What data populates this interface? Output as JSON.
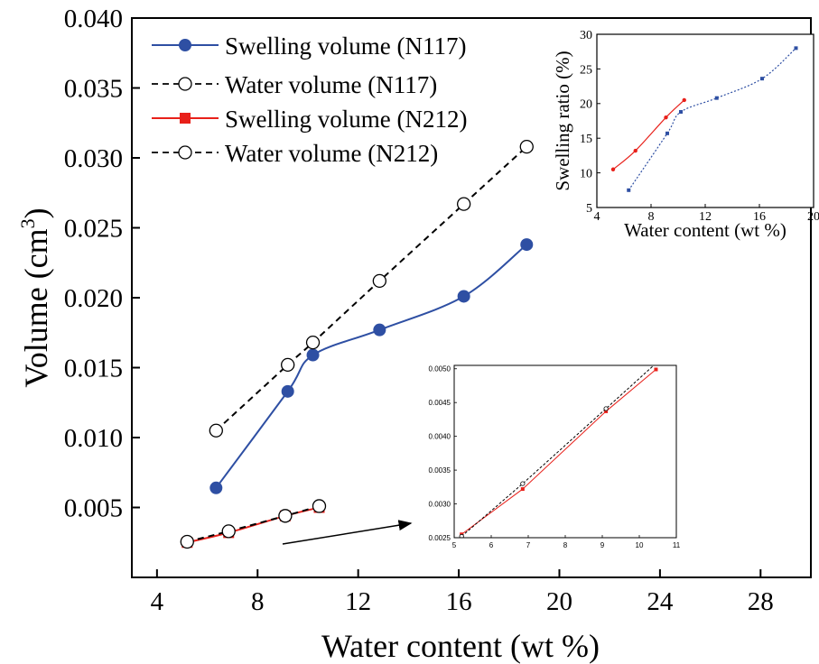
{
  "chart_data": [
    {
      "id": "main",
      "type": "line",
      "xlabel": "Water content (wt %)",
      "ylabel": "Volume (cm",
      "ylabel_sup": "3",
      "ylabel_close": ")",
      "xlim": [
        3,
        30
      ],
      "ylim": [
        0,
        0.04
      ],
      "xticks": [
        4,
        8,
        12,
        16,
        20,
        24,
        28
      ],
      "xtick_labels": [
        "4",
        "8",
        "12",
        "16",
        "20",
        "24",
        "28"
      ],
      "yticks": [
        0.005,
        0.01,
        0.015,
        0.02,
        0.025,
        0.03,
        0.035,
        0.04
      ],
      "ytick_labels": [
        "0.005",
        "0.010",
        "0.015",
        "0.020",
        "0.025",
        "0.030",
        "0.035",
        "0.040"
      ],
      "legend_position": "top-left",
      "series": [
        {
          "name": "Swelling volume (N117)",
          "color": "#2e4fa3",
          "style": "solid",
          "marker": "filled-circle",
          "x": [
            6.35,
            9.2,
            10.2,
            12.85,
            16.2,
            18.7
          ],
          "y": [
            0.0064,
            0.0133,
            0.0159,
            0.0177,
            0.0201,
            0.0238
          ]
        },
        {
          "name": "Water volume (N117)",
          "color": "#000000",
          "style": "dashed",
          "marker": "open-circle",
          "x": [
            6.35,
            9.2,
            10.2,
            12.85,
            16.2,
            18.7
          ],
          "y": [
            0.0105,
            0.0152,
            0.0168,
            0.0212,
            0.0267,
            0.0308
          ]
        },
        {
          "name": "Swelling volume (N212)",
          "color": "#e8201a",
          "style": "solid",
          "marker": "filled-square",
          "x": [
            5.2,
            6.85,
            9.1,
            10.45
          ],
          "y": [
            0.0025,
            0.0032,
            0.0044,
            0.005
          ]
        },
        {
          "name": "Water volume (N212)",
          "color": "#000000",
          "style": "dashed",
          "marker": "open-circle",
          "x": [
            5.2,
            6.85,
            9.1,
            10.45
          ],
          "y": [
            0.00255,
            0.0033,
            0.0044,
            0.0051
          ]
        }
      ]
    },
    {
      "id": "inset-swelling-ratio",
      "type": "line",
      "xlabel": "Water content (wt %)",
      "ylabel": "Swelling ratio (%)",
      "xlim": [
        4,
        20
      ],
      "ylim": [
        5,
        30
      ],
      "xticks": [
        4,
        8,
        12,
        16,
        20
      ],
      "xtick_labels": [
        "4",
        "8",
        "12",
        "16",
        "20"
      ],
      "yticks": [
        5,
        10,
        15,
        20,
        25,
        30
      ],
      "ytick_labels": [
        "5",
        "10",
        "15",
        "20",
        "25",
        "30"
      ],
      "series": [
        {
          "color": "#e8201a",
          "style": "solid",
          "marker": "small-dot",
          "x": [
            5.2,
            6.85,
            9.1,
            10.45
          ],
          "y": [
            10.5,
            13.2,
            18.0,
            20.5
          ]
        },
        {
          "color": "#2e4fa3",
          "style": "dotted",
          "marker": "small-square",
          "x": [
            6.35,
            9.2,
            10.2,
            12.85,
            16.2,
            18.7
          ],
          "y": [
            7.5,
            15.7,
            18.8,
            20.8,
            23.6,
            28.0
          ]
        }
      ]
    },
    {
      "id": "inset-zoom",
      "type": "line",
      "xlim": [
        5,
        11
      ],
      "ylim": [
        0.0025,
        0.00505
      ],
      "xticks": [
        5,
        6,
        7,
        8,
        9,
        10,
        11
      ],
      "xtick_labels": [
        "5",
        "6",
        "7",
        "8",
        "9",
        "10",
        "11"
      ],
      "yticks": [
        0.0025,
        0.003,
        0.0035,
        0.004,
        0.0045,
        0.005
      ],
      "ytick_labels": [
        "0.0025",
        "0.0030",
        "0.0035",
        "0.0040",
        "0.0045",
        "0.0050"
      ],
      "series": [
        {
          "color": "#e8201a",
          "style": "solid",
          "marker": "small-square",
          "x": [
            5.2,
            6.85,
            9.1,
            10.45
          ],
          "y": [
            0.00255,
            0.00322,
            0.00437,
            0.00499
          ]
        },
        {
          "color": "#000000",
          "style": "dashed",
          "marker": "small-open-circle",
          "x": [
            5.2,
            6.85,
            9.1,
            10.45
          ],
          "y": [
            0.00252,
            0.0033,
            0.00441,
            0.00508
          ]
        }
      ]
    }
  ]
}
